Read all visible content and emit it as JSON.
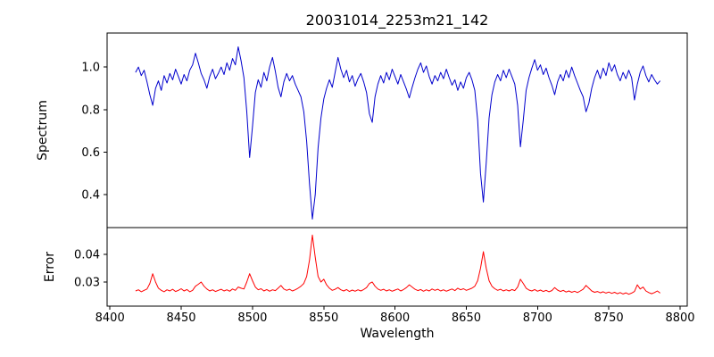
{
  "figure": {
    "background": "#ffffff"
  },
  "wavelength_x": [
    8418,
    8420,
    8422,
    8424,
    8426,
    8428,
    8430,
    8432,
    8434,
    8436,
    8438,
    8440,
    8442,
    8444,
    8446,
    8448,
    8450,
    8452,
    8454,
    8456,
    8458,
    8460,
    8462,
    8464,
    8466,
    8468,
    8470,
    8472,
    8474,
    8476,
    8478,
    8480,
    8482,
    8484,
    8486,
    8488,
    8490,
    8492,
    8494,
    8496,
    8498,
    8500,
    8502,
    8504,
    8506,
    8508,
    8510,
    8512,
    8514,
    8516,
    8518,
    8520,
    8522,
    8524,
    8526,
    8528,
    8530,
    8532,
    8534,
    8536,
    8538,
    8540,
    8542,
    8544,
    8546,
    8548,
    8550,
    8552,
    8554,
    8556,
    8558,
    8560,
    8562,
    8564,
    8566,
    8568,
    8570,
    8572,
    8574,
    8576,
    8578,
    8580,
    8582,
    8584,
    8586,
    8588,
    8590,
    8592,
    8594,
    8596,
    8598,
    8600,
    8602,
    8604,
    8606,
    8608,
    8610,
    8612,
    8614,
    8616,
    8618,
    8620,
    8622,
    8624,
    8626,
    8628,
    8630,
    8632,
    8634,
    8636,
    8638,
    8640,
    8642,
    8644,
    8646,
    8648,
    8650,
    8652,
    8654,
    8656,
    8658,
    8660,
    8662,
    8664,
    8666,
    8668,
    8670,
    8672,
    8674,
    8676,
    8678,
    8680,
    8682,
    8684,
    8686,
    8688,
    8690,
    8692,
    8694,
    8696,
    8698,
    8700,
    8702,
    8704,
    8706,
    8708,
    8710,
    8712,
    8714,
    8716,
    8718,
    8720,
    8722,
    8724,
    8726,
    8728,
    8730,
    8732,
    8734,
    8736,
    8738,
    8740,
    8742,
    8744,
    8746,
    8748,
    8750,
    8752,
    8754,
    8756,
    8758,
    8760,
    8762,
    8764,
    8766,
    8768,
    8770,
    8772,
    8774,
    8776,
    8778,
    8780,
    8782,
    8784,
    8786
  ],
  "chart_data": [
    {
      "type": "line",
      "title": "20031014_2253m21_142",
      "ylabel": "Spectrum",
      "xlabel": "",
      "grid": false,
      "legend": false,
      "xlim": [
        8398,
        8805
      ],
      "ylim": [
        0.245,
        1.16
      ],
      "yticks": [
        0.4,
        0.6,
        0.8,
        1.0
      ],
      "ytick_labels": [
        "0.4",
        "0.6",
        "0.8",
        "1.0"
      ],
      "series": [
        {
          "name": "spectrum",
          "color": "#0000cd",
          "y": [
            0.975,
            1.0,
            0.96,
            0.985,
            0.93,
            0.87,
            0.82,
            0.9,
            0.935,
            0.89,
            0.96,
            0.925,
            0.97,
            0.94,
            0.99,
            0.955,
            0.92,
            0.965,
            0.935,
            0.985,
            1.01,
            1.065,
            1.02,
            0.97,
            0.94,
            0.9,
            0.955,
            0.99,
            0.945,
            0.97,
            1.0,
            0.965,
            1.02,
            0.985,
            1.04,
            1.01,
            1.095,
            1.03,
            0.95,
            0.79,
            0.575,
            0.72,
            0.88,
            0.94,
            0.905,
            0.975,
            0.935,
            1.0,
            1.045,
            0.98,
            0.905,
            0.86,
            0.93,
            0.97,
            0.935,
            0.96,
            0.92,
            0.89,
            0.86,
            0.79,
            0.65,
            0.45,
            0.285,
            0.4,
            0.62,
            0.76,
            0.85,
            0.9,
            0.94,
            0.905,
            0.975,
            1.045,
            0.99,
            0.95,
            0.985,
            0.93,
            0.96,
            0.91,
            0.945,
            0.97,
            0.93,
            0.88,
            0.78,
            0.74,
            0.86,
            0.92,
            0.96,
            0.925,
            0.975,
            0.94,
            0.99,
            0.955,
            0.92,
            0.965,
            0.93,
            0.895,
            0.855,
            0.905,
            0.95,
            0.99,
            1.02,
            0.975,
            1.005,
            0.955,
            0.92,
            0.96,
            0.935,
            0.975,
            0.945,
            0.99,
            0.95,
            0.915,
            0.94,
            0.89,
            0.93,
            0.9,
            0.95,
            0.975,
            0.94,
            0.89,
            0.75,
            0.5,
            0.365,
            0.55,
            0.76,
            0.87,
            0.93,
            0.965,
            0.935,
            0.985,
            0.95,
            0.99,
            0.955,
            0.92,
            0.82,
            0.625,
            0.75,
            0.89,
            0.95,
            0.995,
            1.035,
            0.985,
            1.01,
            0.965,
            0.995,
            0.95,
            0.915,
            0.87,
            0.93,
            0.965,
            0.935,
            0.985,
            0.95,
            1.0,
            0.96,
            0.925,
            0.89,
            0.86,
            0.79,
            0.83,
            0.9,
            0.95,
            0.985,
            0.945,
            0.995,
            0.96,
            1.02,
            0.98,
            1.01,
            0.965,
            0.935,
            0.975,
            0.945,
            0.985,
            0.95,
            0.845,
            0.92,
            0.975,
            1.005,
            0.96,
            0.93,
            0.965,
            0.94,
            0.92,
            0.935
          ]
        }
      ]
    },
    {
      "type": "line",
      "ylabel": "Error",
      "xlabel": "Wavelength",
      "grid": false,
      "legend": false,
      "xlim": [
        8398,
        8805
      ],
      "ylim": [
        0.0213,
        0.0497
      ],
      "yticks": [
        0.03,
        0.04
      ],
      "ytick_labels": [
        "0.03",
        "0.04"
      ],
      "xticks": [
        8400,
        8450,
        8500,
        8550,
        8600,
        8650,
        8700,
        8750,
        8800
      ],
      "series": [
        {
          "name": "error",
          "color": "#ff0000",
          "y": [
            0.0268,
            0.0272,
            0.0265,
            0.027,
            0.0275,
            0.0295,
            0.033,
            0.03,
            0.0278,
            0.027,
            0.0265,
            0.0272,
            0.0268,
            0.0274,
            0.0266,
            0.027,
            0.0276,
            0.0268,
            0.0273,
            0.0265,
            0.027,
            0.0285,
            0.0292,
            0.03,
            0.0285,
            0.0275,
            0.0268,
            0.0272,
            0.0266,
            0.027,
            0.0274,
            0.0268,
            0.0272,
            0.0267,
            0.0275,
            0.027,
            0.0282,
            0.0278,
            0.0275,
            0.03,
            0.033,
            0.0305,
            0.0282,
            0.0272,
            0.0276,
            0.0268,
            0.0273,
            0.0267,
            0.0272,
            0.0269,
            0.0278,
            0.0288,
            0.0275,
            0.027,
            0.0274,
            0.0268,
            0.0272,
            0.0278,
            0.0285,
            0.0295,
            0.032,
            0.038,
            0.047,
            0.039,
            0.032,
            0.03,
            0.031,
            0.029,
            0.0278,
            0.027,
            0.0274,
            0.028,
            0.0272,
            0.0268,
            0.0273,
            0.0266,
            0.0271,
            0.0267,
            0.0272,
            0.0268,
            0.0273,
            0.028,
            0.0295,
            0.03,
            0.0285,
            0.0275,
            0.027,
            0.0274,
            0.0268,
            0.0272,
            0.0267,
            0.0271,
            0.0275,
            0.0268,
            0.0273,
            0.028,
            0.029,
            0.0282,
            0.0274,
            0.0269,
            0.0273,
            0.0267,
            0.0272,
            0.0268,
            0.0275,
            0.027,
            0.0274,
            0.0268,
            0.0272,
            0.0267,
            0.0271,
            0.0275,
            0.0269,
            0.0278,
            0.0272,
            0.0276,
            0.027,
            0.0274,
            0.0278,
            0.0285,
            0.0305,
            0.035,
            0.041,
            0.035,
            0.0305,
            0.0285,
            0.0276,
            0.027,
            0.0274,
            0.0268,
            0.0272,
            0.0268,
            0.0273,
            0.0269,
            0.0282,
            0.031,
            0.0295,
            0.0278,
            0.0271,
            0.0268,
            0.0273,
            0.0267,
            0.0271,
            0.0266,
            0.027,
            0.0265,
            0.0269,
            0.028,
            0.0271,
            0.0266,
            0.027,
            0.0264,
            0.0268,
            0.0263,
            0.0267,
            0.0262,
            0.0268,
            0.0274,
            0.0288,
            0.0278,
            0.0268,
            0.0263,
            0.0266,
            0.0261,
            0.0265,
            0.026,
            0.0264,
            0.0259,
            0.0263,
            0.0258,
            0.0262,
            0.0257,
            0.0261,
            0.0256,
            0.026,
            0.0266,
            0.029,
            0.0275,
            0.0282,
            0.0268,
            0.0262,
            0.0258,
            0.0262,
            0.0268,
            0.026
          ]
        }
      ]
    }
  ]
}
